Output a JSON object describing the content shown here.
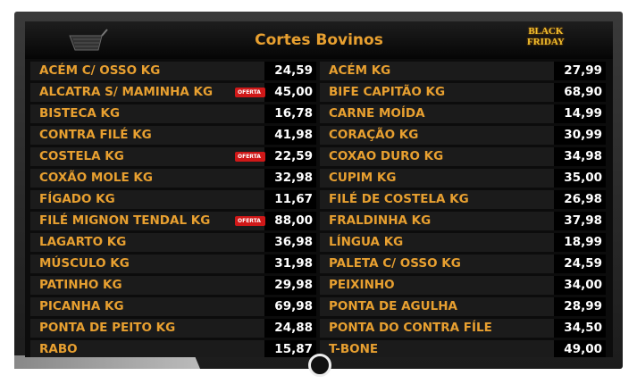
{
  "header": {
    "title": "Cortes Bovinos",
    "badge": [
      "BLACK",
      "FRIDAY"
    ]
  },
  "menu": {
    "left": [
      {
        "name": "ACÉM C/ OSSO KG",
        "price": "24,59"
      },
      {
        "name": "ALCATRA S/ MAMINHA KG",
        "price": "45,00",
        "offer": "OFERTA"
      },
      {
        "name": "BISTECA KG",
        "price": "16,78"
      },
      {
        "name": "CONTRA FILÉ KG",
        "price": "41,98"
      },
      {
        "name": "COSTELA KG",
        "price": "22,59",
        "offer": "OFERTA"
      },
      {
        "name": "COXÃO MOLE KG",
        "price": "32,98"
      },
      {
        "name": "FÍGADO KG",
        "price": "11,67"
      },
      {
        "name": "FILÉ MIGNON TENDAL KG",
        "price": "88,00",
        "offer": "OFERTA"
      },
      {
        "name": "LAGARTO KG",
        "price": "36,98"
      },
      {
        "name": "MÚSCULO KG",
        "price": "31,98"
      },
      {
        "name": "PATINHO KG",
        "price": "29,98"
      },
      {
        "name": "PICANHA KG",
        "price": "69,98"
      },
      {
        "name": "PONTA DE PEITO KG",
        "price": "24,88"
      },
      {
        "name": "RABO",
        "price": "15,87"
      }
    ],
    "right": [
      {
        "name": "ACÉM KG",
        "price": "27,99"
      },
      {
        "name": "BIFE CAPITÃO KG",
        "price": "68,90"
      },
      {
        "name": "CARNE MOÍDA",
        "price": "14,99"
      },
      {
        "name": "CORAÇÃO KG",
        "price": "30,99"
      },
      {
        "name": "COXAO DURO KG",
        "price": "34,98"
      },
      {
        "name": "CUPIM KG",
        "price": "35,00"
      },
      {
        "name": "FILÉ DE COSTELA KG",
        "price": "26,98"
      },
      {
        "name": "FRALDINHA KG",
        "price": "37,98"
      },
      {
        "name": "LÍNGUA KG",
        "price": "18,99"
      },
      {
        "name": "PALETA C/ OSSO KG",
        "price": "24,59"
      },
      {
        "name": "PEIXINHO",
        "price": "34,00"
      },
      {
        "name": "PONTA DE AGULHA",
        "price": "28,99"
      },
      {
        "name": "PONTA DO CONTRA FÍLE",
        "price": "34,50"
      },
      {
        "name": "T-BONE",
        "price": "49,00"
      }
    ]
  }
}
